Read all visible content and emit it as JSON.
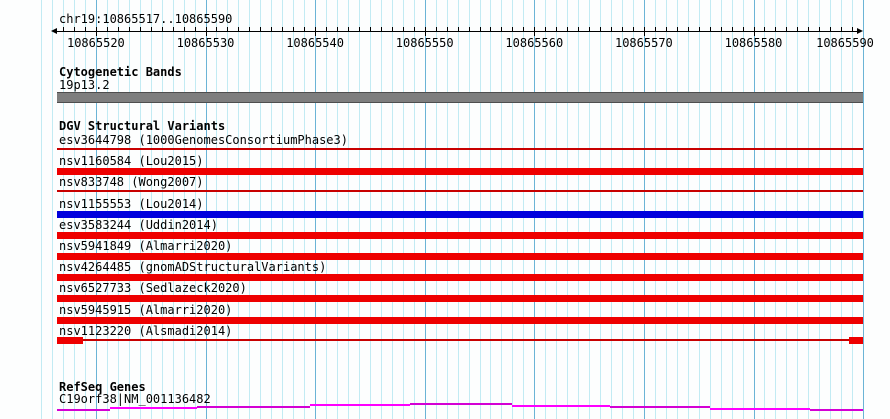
{
  "header": {
    "region_label": "chr19:10865517..10865590"
  },
  "axis": {
    "start": 10865517,
    "end": 10865590,
    "major_tick_interval": 10,
    "tick_labels": [
      "10865520",
      "10865530",
      "10865540",
      "10865550",
      "10865560",
      "10865570",
      "10865580",
      "10865590"
    ]
  },
  "grid": {
    "minor_color": "#c2ebf3",
    "major_color": "#6bb4d6"
  },
  "sections": {
    "cytogenetic": {
      "title": "Cytogenetic Bands",
      "bands": [
        {
          "name": "19p13.2",
          "fill": "#7e7e7e",
          "border": "#4e4e4e"
        }
      ]
    },
    "dgv": {
      "title": "DGV Structural Variants",
      "variants": [
        {
          "label": "esv3644798 (1000GenomesConsortiumPhase3)",
          "glyph": "line",
          "color": "#c80000"
        },
        {
          "label": "nsv1160584 (Lou2015)",
          "glyph": "bar",
          "color": "#ee0000"
        },
        {
          "label": "nsv833748 (Wong2007)",
          "glyph": "line",
          "color": "#c80000"
        },
        {
          "label": "nsv1155553 (Lou2014)",
          "glyph": "bar",
          "color": "#0000dd"
        },
        {
          "label": "esv3583244 (Uddin2014)",
          "glyph": "bar",
          "color": "#ee0000"
        },
        {
          "label": "nsv5941849 (Almarri2020)",
          "glyph": "bar",
          "color": "#ee0000"
        },
        {
          "label": "nsv4264485 (gnomADStructuralVariants)",
          "glyph": "bar",
          "color": "#ee0000"
        },
        {
          "label": "nsv6527733 (Sedlazeck2020)",
          "glyph": "bar",
          "color": "#ee0000"
        },
        {
          "label": "nsv5945915 (Almarri2020)",
          "glyph": "bar",
          "color": "#ee0000"
        },
        {
          "label": "nsv1123220 (Alsmadi2014)",
          "glyph": "line-ends",
          "color": "#c80000",
          "end_color": "#ee0000"
        }
      ]
    },
    "refseq": {
      "title": "RefSeq Genes",
      "gene_label": "C19orf38|NM_001136482",
      "intron_color_a": "#d400d4",
      "intron_color_b": "#ff00ff",
      "intron_segments": [
        [
          57,
          110,
          408.5
        ],
        [
          110,
          197,
          407
        ],
        [
          197,
          310,
          405.5
        ],
        [
          310,
          410,
          404
        ],
        [
          410,
          512,
          403
        ],
        [
          512,
          610,
          404.5
        ],
        [
          610,
          710,
          406
        ],
        [
          710,
          810,
          407.5
        ],
        [
          810,
          863,
          409
        ]
      ]
    }
  }
}
